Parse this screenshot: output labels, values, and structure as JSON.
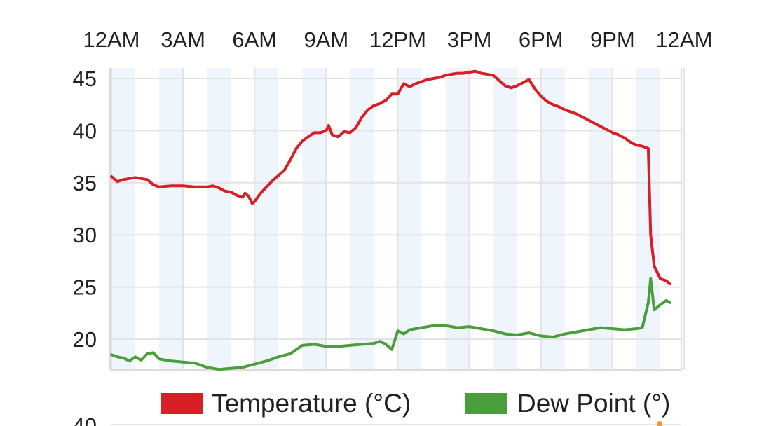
{
  "chart_data": {
    "type": "line",
    "title": "",
    "xlabel": "",
    "ylabel": "",
    "x_tick_labels": [
      "12AM",
      "3AM",
      "6AM",
      "9AM",
      "12PM",
      "3PM",
      "6PM",
      "9PM",
      "12AM"
    ],
    "x_range_hours": [
      0,
      24
    ],
    "y_ticks": [
      20,
      25,
      30,
      35,
      40,
      45
    ],
    "ylim": [
      17,
      46
    ],
    "grid": true,
    "alternating_column_shading": true,
    "legend_position": "bottom",
    "series": [
      {
        "name": "Temperature (°C)",
        "color": "#d81f26",
        "points": [
          [
            0.0,
            35.6
          ],
          [
            0.25,
            35.1
          ],
          [
            0.5,
            35.3
          ],
          [
            0.75,
            35.4
          ],
          [
            1.0,
            35.5
          ],
          [
            1.25,
            35.4
          ],
          [
            1.5,
            35.3
          ],
          [
            1.75,
            34.8
          ],
          [
            2.0,
            34.6
          ],
          [
            2.5,
            34.7
          ],
          [
            3.0,
            34.7
          ],
          [
            3.5,
            34.6
          ],
          [
            4.0,
            34.6
          ],
          [
            4.25,
            34.7
          ],
          [
            4.5,
            34.5
          ],
          [
            4.75,
            34.2
          ],
          [
            5.0,
            34.1
          ],
          [
            5.25,
            33.8
          ],
          [
            5.5,
            33.6
          ],
          [
            5.6,
            34.0
          ],
          [
            5.75,
            33.7
          ],
          [
            5.9,
            33.0
          ],
          [
            6.0,
            33.2
          ],
          [
            6.25,
            34.0
          ],
          [
            6.5,
            34.6
          ],
          [
            6.75,
            35.2
          ],
          [
            7.0,
            35.7
          ],
          [
            7.25,
            36.2
          ],
          [
            7.5,
            37.2
          ],
          [
            7.75,
            38.3
          ],
          [
            8.0,
            39.0
          ],
          [
            8.25,
            39.4
          ],
          [
            8.5,
            39.8
          ],
          [
            8.75,
            39.8
          ],
          [
            9.0,
            40.0
          ],
          [
            9.1,
            40.5
          ],
          [
            9.25,
            39.6
          ],
          [
            9.5,
            39.4
          ],
          [
            9.75,
            39.9
          ],
          [
            10.0,
            39.8
          ],
          [
            10.25,
            40.3
          ],
          [
            10.5,
            41.3
          ],
          [
            10.75,
            42.0
          ],
          [
            11.0,
            42.4
          ],
          [
            11.25,
            42.6
          ],
          [
            11.5,
            42.9
          ],
          [
            11.75,
            43.5
          ],
          [
            12.0,
            43.5
          ],
          [
            12.25,
            44.5
          ],
          [
            12.5,
            44.2
          ],
          [
            12.75,
            44.5
          ],
          [
            13.0,
            44.7
          ],
          [
            13.25,
            44.9
          ],
          [
            13.5,
            45.0
          ],
          [
            13.75,
            45.1
          ],
          [
            14.0,
            45.3
          ],
          [
            14.25,
            45.4
          ],
          [
            14.5,
            45.5
          ],
          [
            14.75,
            45.5
          ],
          [
            15.0,
            45.6
          ],
          [
            15.25,
            45.7
          ],
          [
            15.5,
            45.5
          ],
          [
            15.75,
            45.4
          ],
          [
            16.0,
            45.3
          ],
          [
            16.25,
            44.8
          ],
          [
            16.5,
            44.3
          ],
          [
            16.75,
            44.1
          ],
          [
            17.0,
            44.3
          ],
          [
            17.25,
            44.6
          ],
          [
            17.5,
            44.9
          ],
          [
            17.75,
            44.0
          ],
          [
            18.0,
            43.3
          ],
          [
            18.25,
            42.8
          ],
          [
            18.5,
            42.5
          ],
          [
            18.75,
            42.3
          ],
          [
            19.0,
            42.0
          ],
          [
            19.25,
            41.8
          ],
          [
            19.5,
            41.6
          ],
          [
            19.75,
            41.3
          ],
          [
            20.0,
            41.0
          ],
          [
            20.25,
            40.7
          ],
          [
            20.5,
            40.4
          ],
          [
            20.75,
            40.1
          ],
          [
            21.0,
            39.8
          ],
          [
            21.25,
            39.6
          ],
          [
            21.5,
            39.3
          ],
          [
            21.75,
            38.9
          ],
          [
            22.0,
            38.6
          ],
          [
            22.25,
            38.5
          ],
          [
            22.5,
            38.3
          ],
          [
            22.6,
            30.0
          ],
          [
            22.75,
            27.0
          ],
          [
            23.0,
            25.8
          ],
          [
            23.25,
            25.6
          ],
          [
            23.4,
            25.3
          ]
        ]
      },
      {
        "name": "Dew Point (°)",
        "color": "#4a9e3b",
        "points": [
          [
            0.0,
            18.5
          ],
          [
            0.25,
            18.3
          ],
          [
            0.5,
            18.2
          ],
          [
            0.75,
            17.9
          ],
          [
            1.0,
            18.3
          ],
          [
            1.25,
            18.0
          ],
          [
            1.5,
            18.6
          ],
          [
            1.75,
            18.7
          ],
          [
            2.0,
            18.1
          ],
          [
            2.5,
            17.9
          ],
          [
            3.0,
            17.8
          ],
          [
            3.5,
            17.7
          ],
          [
            4.0,
            17.3
          ],
          [
            4.5,
            17.1
          ],
          [
            5.0,
            17.2
          ],
          [
            5.5,
            17.3
          ],
          [
            6.0,
            17.6
          ],
          [
            6.5,
            17.9
          ],
          [
            7.0,
            18.3
          ],
          [
            7.5,
            18.6
          ],
          [
            7.75,
            19.0
          ],
          [
            8.0,
            19.4
          ],
          [
            8.5,
            19.5
          ],
          [
            9.0,
            19.3
          ],
          [
            9.5,
            19.3
          ],
          [
            10.0,
            19.4
          ],
          [
            10.5,
            19.5
          ],
          [
            11.0,
            19.6
          ],
          [
            11.25,
            19.8
          ],
          [
            11.5,
            19.5
          ],
          [
            11.75,
            19.0
          ],
          [
            12.0,
            20.8
          ],
          [
            12.25,
            20.5
          ],
          [
            12.5,
            20.9
          ],
          [
            13.0,
            21.1
          ],
          [
            13.5,
            21.3
          ],
          [
            14.0,
            21.3
          ],
          [
            14.5,
            21.1
          ],
          [
            15.0,
            21.2
          ],
          [
            15.5,
            21.0
          ],
          [
            16.0,
            20.8
          ],
          [
            16.5,
            20.5
          ],
          [
            17.0,
            20.4
          ],
          [
            17.5,
            20.6
          ],
          [
            18.0,
            20.3
          ],
          [
            18.5,
            20.2
          ],
          [
            19.0,
            20.5
          ],
          [
            19.5,
            20.7
          ],
          [
            20.0,
            20.9
          ],
          [
            20.5,
            21.1
          ],
          [
            21.0,
            21.0
          ],
          [
            21.5,
            20.9
          ],
          [
            22.0,
            21.0
          ],
          [
            22.25,
            21.1
          ],
          [
            22.5,
            23.5
          ],
          [
            22.6,
            25.8
          ],
          [
            22.75,
            22.8
          ],
          [
            23.0,
            23.3
          ],
          [
            23.25,
            23.7
          ],
          [
            23.4,
            23.5
          ]
        ]
      }
    ]
  },
  "next_chart_visible_tick": "40"
}
